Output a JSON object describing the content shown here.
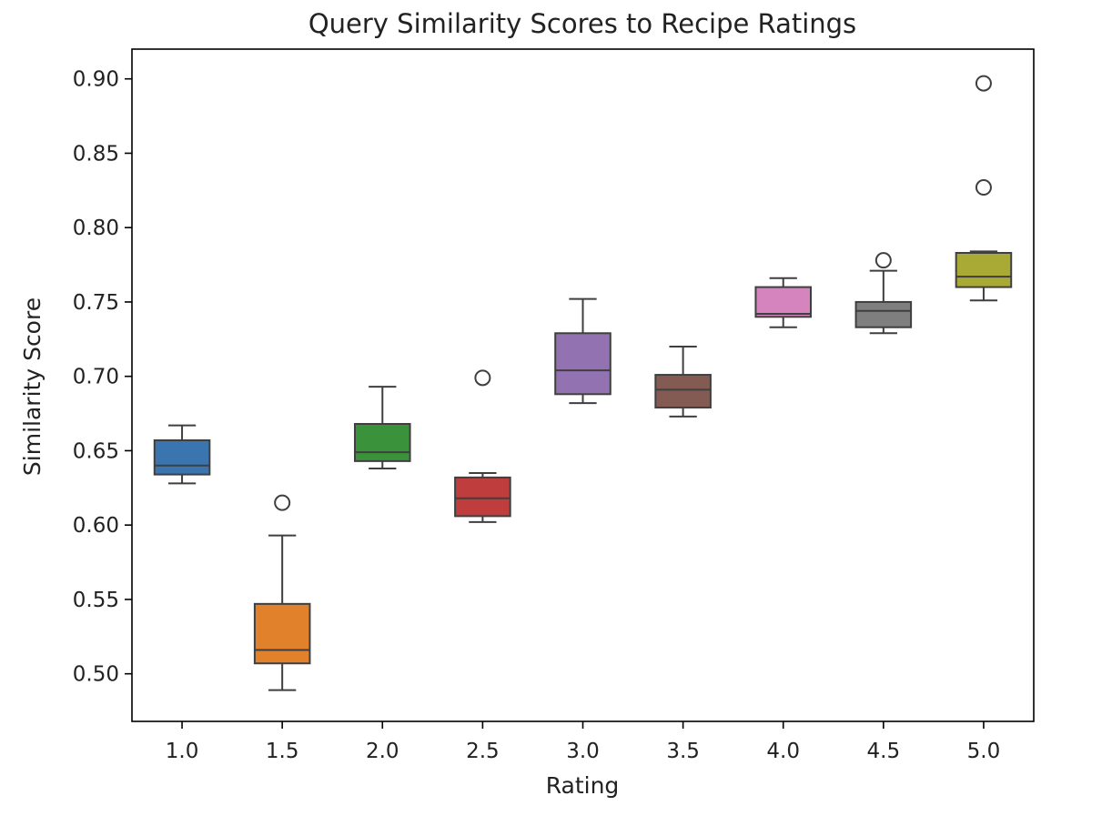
{
  "chart_data": {
    "type": "box",
    "title": "Query Similarity Scores to Recipe Ratings",
    "xlabel": "Rating",
    "ylabel": "Similarity Score",
    "ylim": [
      0.468,
      0.92
    ],
    "yticks": [
      "0.50",
      "0.55",
      "0.60",
      "0.65",
      "0.70",
      "0.75",
      "0.80",
      "0.85",
      "0.90"
    ],
    "grid": false,
    "categories": [
      "1.0",
      "1.5",
      "2.0",
      "2.5",
      "3.0",
      "3.5",
      "4.0",
      "4.5",
      "5.0"
    ],
    "boxes": [
      {
        "category": "1.0",
        "whisker_low": 0.628,
        "q1": 0.634,
        "median": 0.64,
        "q3": 0.657,
        "whisker_high": 0.667,
        "outliers": [],
        "color": "#3a75af"
      },
      {
        "category": "1.5",
        "whisker_low": 0.489,
        "q1": 0.507,
        "median": 0.516,
        "q3": 0.547,
        "whisker_high": 0.593,
        "outliers": [
          0.615
        ],
        "color": "#e1812b"
      },
      {
        "category": "2.0",
        "whisker_low": 0.638,
        "q1": 0.643,
        "median": 0.649,
        "q3": 0.668,
        "whisker_high": 0.693,
        "outliers": [],
        "color": "#3a923a"
      },
      {
        "category": "2.5",
        "whisker_low": 0.602,
        "q1": 0.606,
        "median": 0.618,
        "q3": 0.632,
        "whisker_high": 0.635,
        "outliers": [
          0.699
        ],
        "color": "#c03d3e"
      },
      {
        "category": "3.0",
        "whisker_low": 0.682,
        "q1": 0.688,
        "median": 0.704,
        "q3": 0.729,
        "whisker_high": 0.752,
        "outliers": [],
        "color": "#9372b2"
      },
      {
        "category": "3.5",
        "whisker_low": 0.673,
        "q1": 0.679,
        "median": 0.691,
        "q3": 0.701,
        "whisker_high": 0.72,
        "outliers": [],
        "color": "#845b53"
      },
      {
        "category": "4.0",
        "whisker_low": 0.733,
        "q1": 0.74,
        "median": 0.742,
        "q3": 0.76,
        "whisker_high": 0.766,
        "outliers": [],
        "color": "#d684bd"
      },
      {
        "category": "4.5",
        "whisker_low": 0.729,
        "q1": 0.733,
        "median": 0.744,
        "q3": 0.75,
        "whisker_high": 0.771,
        "outliers": [
          0.778
        ],
        "color": "#7f7f7f"
      },
      {
        "category": "5.0",
        "whisker_low": 0.751,
        "q1": 0.76,
        "median": 0.767,
        "q3": 0.783,
        "whisker_high": 0.784,
        "outliers": [
          0.827,
          0.897
        ],
        "color": "#a9aa35"
      }
    ]
  }
}
